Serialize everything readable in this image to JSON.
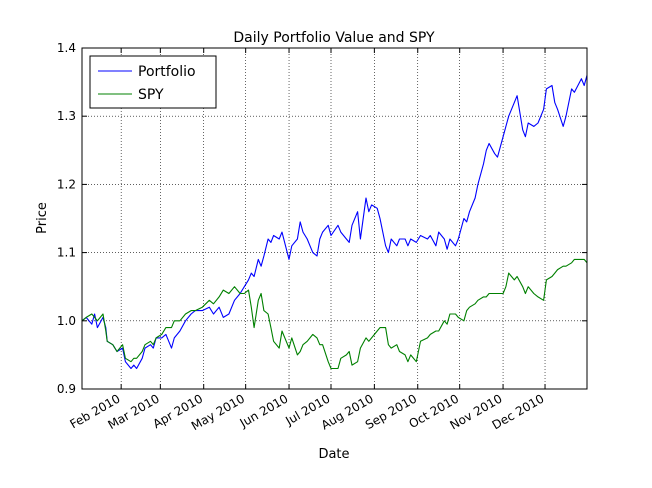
{
  "chart_data": {
    "type": "line",
    "title": "Daily Portfolio Value and SPY",
    "xlabel": "Date",
    "ylabel": "Price",
    "xlim": [
      "2010-01-04",
      "2010-12-31"
    ],
    "ylim": [
      0.9,
      1.4
    ],
    "yticks": [
      0.9,
      1.0,
      1.1,
      1.2,
      1.3,
      1.4
    ],
    "yticklabels": [
      "0.9",
      "1.0",
      "1.1",
      "1.2",
      "1.3",
      "1.4"
    ],
    "xticks": [
      "2010-02-01",
      "2010-03-01",
      "2010-04-01",
      "2010-05-01",
      "2010-06-01",
      "2010-07-01",
      "2010-08-01",
      "2010-09-01",
      "2010-10-01",
      "2010-11-01",
      "2010-12-01"
    ],
    "xticklabels": [
      "Feb 2010",
      "Mar 2010",
      "Apr 2010",
      "May 2010",
      "Jun 2010",
      "Jul 2010",
      "Aug 2010",
      "Sep 2010",
      "Oct 2010",
      "Nov 2010",
      "Dec 2010"
    ],
    "grid": true,
    "legend_position": "top-left",
    "series": [
      {
        "name": "Portfolio",
        "color": "#0000ff",
        "points": [
          [
            "2010-01-04",
            1.0
          ],
          [
            "2010-01-07",
            1.005
          ],
          [
            "2010-01-11",
            0.995
          ],
          [
            "2010-01-13",
            1.01
          ],
          [
            "2010-01-15",
            0.99
          ],
          [
            "2010-01-19",
            1.005
          ],
          [
            "2010-01-21",
            0.99
          ],
          [
            "2010-01-22",
            0.97
          ],
          [
            "2010-01-26",
            0.965
          ],
          [
            "2010-01-29",
            0.955
          ],
          [
            "2010-02-02",
            0.96
          ],
          [
            "2010-02-04",
            0.94
          ],
          [
            "2010-02-08",
            0.93
          ],
          [
            "2010-02-10",
            0.935
          ],
          [
            "2010-02-12",
            0.93
          ],
          [
            "2010-02-16",
            0.945
          ],
          [
            "2010-02-18",
            0.96
          ],
          [
            "2010-02-22",
            0.965
          ],
          [
            "2010-02-24",
            0.96
          ],
          [
            "2010-02-26",
            0.975
          ],
          [
            "2010-03-02",
            0.975
          ],
          [
            "2010-03-05",
            0.98
          ],
          [
            "2010-03-09",
            0.96
          ],
          [
            "2010-03-11",
            0.975
          ],
          [
            "2010-03-15",
            0.985
          ],
          [
            "2010-03-19",
            1.0
          ],
          [
            "2010-03-23",
            1.01
          ],
          [
            "2010-03-26",
            1.015
          ],
          [
            "2010-03-31",
            1.015
          ],
          [
            "2010-04-05",
            1.02
          ],
          [
            "2010-04-08",
            1.01
          ],
          [
            "2010-04-12",
            1.02
          ],
          [
            "2010-04-15",
            1.005
          ],
          [
            "2010-04-19",
            1.01
          ],
          [
            "2010-04-23",
            1.03
          ],
          [
            "2010-04-27",
            1.04
          ],
          [
            "2010-04-30",
            1.05
          ],
          [
            "2010-05-03",
            1.06
          ],
          [
            "2010-05-05",
            1.07
          ],
          [
            "2010-05-07",
            1.065
          ],
          [
            "2010-05-10",
            1.09
          ],
          [
            "2010-05-12",
            1.08
          ],
          [
            "2010-05-14",
            1.095
          ],
          [
            "2010-05-17",
            1.12
          ],
          [
            "2010-05-19",
            1.115
          ],
          [
            "2010-05-21",
            1.125
          ],
          [
            "2010-05-25",
            1.12
          ],
          [
            "2010-05-27",
            1.13
          ],
          [
            "2010-06-01",
            1.09
          ],
          [
            "2010-06-03",
            1.11
          ],
          [
            "2010-06-07",
            1.12
          ],
          [
            "2010-06-09",
            1.145
          ],
          [
            "2010-06-11",
            1.13
          ],
          [
            "2010-06-14",
            1.12
          ],
          [
            "2010-06-16",
            1.11
          ],
          [
            "2010-06-18",
            1.1
          ],
          [
            "2010-06-21",
            1.095
          ],
          [
            "2010-06-23",
            1.12
          ],
          [
            "2010-06-25",
            1.13
          ],
          [
            "2010-06-29",
            1.14
          ],
          [
            "2010-07-01",
            1.125
          ],
          [
            "2010-07-06",
            1.14
          ],
          [
            "2010-07-08",
            1.13
          ],
          [
            "2010-07-12",
            1.12
          ],
          [
            "2010-07-14",
            1.115
          ],
          [
            "2010-07-16",
            1.14
          ],
          [
            "2010-07-20",
            1.16
          ],
          [
            "2010-07-22",
            1.12
          ],
          [
            "2010-07-26",
            1.18
          ],
          [
            "2010-07-28",
            1.16
          ],
          [
            "2010-07-30",
            1.17
          ],
          [
            "2010-08-03",
            1.165
          ],
          [
            "2010-08-05",
            1.15
          ],
          [
            "2010-08-09",
            1.11
          ],
          [
            "2010-08-11",
            1.1
          ],
          [
            "2010-08-13",
            1.12
          ],
          [
            "2010-08-17",
            1.11
          ],
          [
            "2010-08-19",
            1.12
          ],
          [
            "2010-08-23",
            1.12
          ],
          [
            "2010-08-25",
            1.11
          ],
          [
            "2010-08-27",
            1.12
          ],
          [
            "2010-08-31",
            1.115
          ],
          [
            "2010-09-03",
            1.125
          ],
          [
            "2010-09-08",
            1.12
          ],
          [
            "2010-09-10",
            1.125
          ],
          [
            "2010-09-14",
            1.11
          ],
          [
            "2010-09-16",
            1.13
          ],
          [
            "2010-09-20",
            1.12
          ],
          [
            "2010-09-22",
            1.105
          ],
          [
            "2010-09-24",
            1.12
          ],
          [
            "2010-09-28",
            1.11
          ],
          [
            "2010-09-30",
            1.12
          ],
          [
            "2010-10-04",
            1.15
          ],
          [
            "2010-10-06",
            1.145
          ],
          [
            "2010-10-08",
            1.16
          ],
          [
            "2010-10-12",
            1.18
          ],
          [
            "2010-10-14",
            1.2
          ],
          [
            "2010-10-18",
            1.23
          ],
          [
            "2010-10-20",
            1.25
          ],
          [
            "2010-10-22",
            1.26
          ],
          [
            "2010-10-26",
            1.245
          ],
          [
            "2010-10-28",
            1.24
          ],
          [
            "2010-11-01",
            1.27
          ],
          [
            "2010-11-03",
            1.285
          ],
          [
            "2010-11-05",
            1.3
          ],
          [
            "2010-11-09",
            1.32
          ],
          [
            "2010-11-11",
            1.33
          ],
          [
            "2010-11-15",
            1.28
          ],
          [
            "2010-11-17",
            1.27
          ],
          [
            "2010-11-19",
            1.29
          ],
          [
            "2010-11-23",
            1.285
          ],
          [
            "2010-11-26",
            1.29
          ],
          [
            "2010-11-30",
            1.31
          ],
          [
            "2010-12-02",
            1.34
          ],
          [
            "2010-12-06",
            1.345
          ],
          [
            "2010-12-08",
            1.32
          ],
          [
            "2010-12-10",
            1.31
          ],
          [
            "2010-12-14",
            1.285
          ],
          [
            "2010-12-16",
            1.3
          ],
          [
            "2010-12-20",
            1.34
          ],
          [
            "2010-12-22",
            1.335
          ],
          [
            "2010-12-27",
            1.355
          ],
          [
            "2010-12-29",
            1.345
          ],
          [
            "2010-12-31",
            1.36
          ]
        ]
      },
      {
        "name": "SPY",
        "color": "#008000",
        "points": [
          [
            "2010-01-04",
            1.0
          ],
          [
            "2010-01-07",
            1.005
          ],
          [
            "2010-01-11",
            1.01
          ],
          [
            "2010-01-13",
            1.005
          ],
          [
            "2010-01-15",
            1.0
          ],
          [
            "2010-01-19",
            1.01
          ],
          [
            "2010-01-21",
            0.985
          ],
          [
            "2010-01-22",
            0.97
          ],
          [
            "2010-01-26",
            0.965
          ],
          [
            "2010-01-29",
            0.955
          ],
          [
            "2010-02-02",
            0.965
          ],
          [
            "2010-02-04",
            0.945
          ],
          [
            "2010-02-08",
            0.94
          ],
          [
            "2010-02-10",
            0.945
          ],
          [
            "2010-02-12",
            0.945
          ],
          [
            "2010-02-16",
            0.955
          ],
          [
            "2010-02-18",
            0.965
          ],
          [
            "2010-02-22",
            0.97
          ],
          [
            "2010-02-24",
            0.965
          ],
          [
            "2010-02-26",
            0.975
          ],
          [
            "2010-03-02",
            0.98
          ],
          [
            "2010-03-05",
            0.99
          ],
          [
            "2010-03-09",
            0.99
          ],
          [
            "2010-03-11",
            1.0
          ],
          [
            "2010-03-15",
            1.0
          ],
          [
            "2010-03-19",
            1.01
          ],
          [
            "2010-03-23",
            1.015
          ],
          [
            "2010-03-26",
            1.015
          ],
          [
            "2010-03-31",
            1.02
          ],
          [
            "2010-04-05",
            1.03
          ],
          [
            "2010-04-08",
            1.025
          ],
          [
            "2010-04-12",
            1.035
          ],
          [
            "2010-04-15",
            1.045
          ],
          [
            "2010-04-19",
            1.04
          ],
          [
            "2010-04-23",
            1.05
          ],
          [
            "2010-04-27",
            1.04
          ],
          [
            "2010-04-30",
            1.04
          ],
          [
            "2010-05-03",
            1.045
          ],
          [
            "2010-05-05",
            1.02
          ],
          [
            "2010-05-07",
            0.99
          ],
          [
            "2010-05-10",
            1.03
          ],
          [
            "2010-05-12",
            1.04
          ],
          [
            "2010-05-14",
            1.015
          ],
          [
            "2010-05-17",
            1.01
          ],
          [
            "2010-05-19",
            0.99
          ],
          [
            "2010-05-21",
            0.97
          ],
          [
            "2010-05-25",
            0.96
          ],
          [
            "2010-05-27",
            0.985
          ],
          [
            "2010-06-01",
            0.96
          ],
          [
            "2010-06-03",
            0.975
          ],
          [
            "2010-06-07",
            0.95
          ],
          [
            "2010-06-09",
            0.955
          ],
          [
            "2010-06-11",
            0.965
          ],
          [
            "2010-06-14",
            0.97
          ],
          [
            "2010-06-16",
            0.975
          ],
          [
            "2010-06-18",
            0.98
          ],
          [
            "2010-06-21",
            0.975
          ],
          [
            "2010-06-23",
            0.965
          ],
          [
            "2010-06-25",
            0.965
          ],
          [
            "2010-06-29",
            0.94
          ],
          [
            "2010-07-01",
            0.93
          ],
          [
            "2010-07-06",
            0.93
          ],
          [
            "2010-07-08",
            0.945
          ],
          [
            "2010-07-12",
            0.95
          ],
          [
            "2010-07-14",
            0.955
          ],
          [
            "2010-07-16",
            0.935
          ],
          [
            "2010-07-20",
            0.94
          ],
          [
            "2010-07-22",
            0.96
          ],
          [
            "2010-07-26",
            0.975
          ],
          [
            "2010-07-28",
            0.97
          ],
          [
            "2010-07-30",
            0.975
          ],
          [
            "2010-08-03",
            0.985
          ],
          [
            "2010-08-05",
            0.99
          ],
          [
            "2010-08-09",
            0.99
          ],
          [
            "2010-08-11",
            0.965
          ],
          [
            "2010-08-13",
            0.96
          ],
          [
            "2010-08-17",
            0.965
          ],
          [
            "2010-08-19",
            0.955
          ],
          [
            "2010-08-23",
            0.95
          ],
          [
            "2010-08-25",
            0.94
          ],
          [
            "2010-08-27",
            0.95
          ],
          [
            "2010-08-31",
            0.94
          ],
          [
            "2010-09-03",
            0.97
          ],
          [
            "2010-09-08",
            0.975
          ],
          [
            "2010-09-10",
            0.98
          ],
          [
            "2010-09-14",
            0.985
          ],
          [
            "2010-09-16",
            0.985
          ],
          [
            "2010-09-20",
            1.0
          ],
          [
            "2010-09-22",
            0.995
          ],
          [
            "2010-09-24",
            1.01
          ],
          [
            "2010-09-28",
            1.01
          ],
          [
            "2010-09-30",
            1.005
          ],
          [
            "2010-10-04",
            1.0
          ],
          [
            "2010-10-06",
            1.015
          ],
          [
            "2010-10-08",
            1.02
          ],
          [
            "2010-10-12",
            1.025
          ],
          [
            "2010-10-14",
            1.03
          ],
          [
            "2010-10-18",
            1.035
          ],
          [
            "2010-10-20",
            1.035
          ],
          [
            "2010-10-22",
            1.04
          ],
          [
            "2010-10-26",
            1.04
          ],
          [
            "2010-10-28",
            1.04
          ],
          [
            "2010-11-01",
            1.04
          ],
          [
            "2010-11-03",
            1.05
          ],
          [
            "2010-11-05",
            1.07
          ],
          [
            "2010-11-09",
            1.06
          ],
          [
            "2010-11-11",
            1.065
          ],
          [
            "2010-11-15",
            1.05
          ],
          [
            "2010-11-17",
            1.04
          ],
          [
            "2010-11-19",
            1.05
          ],
          [
            "2010-11-23",
            1.04
          ],
          [
            "2010-11-26",
            1.035
          ],
          [
            "2010-11-30",
            1.03
          ],
          [
            "2010-12-02",
            1.06
          ],
          [
            "2010-12-06",
            1.065
          ],
          [
            "2010-12-08",
            1.07
          ],
          [
            "2010-12-10",
            1.075
          ],
          [
            "2010-12-14",
            1.08
          ],
          [
            "2010-12-16",
            1.08
          ],
          [
            "2010-12-20",
            1.085
          ],
          [
            "2010-12-22",
            1.09
          ],
          [
            "2010-12-27",
            1.09
          ],
          [
            "2010-12-29",
            1.09
          ],
          [
            "2010-12-31",
            1.085
          ]
        ]
      }
    ]
  }
}
